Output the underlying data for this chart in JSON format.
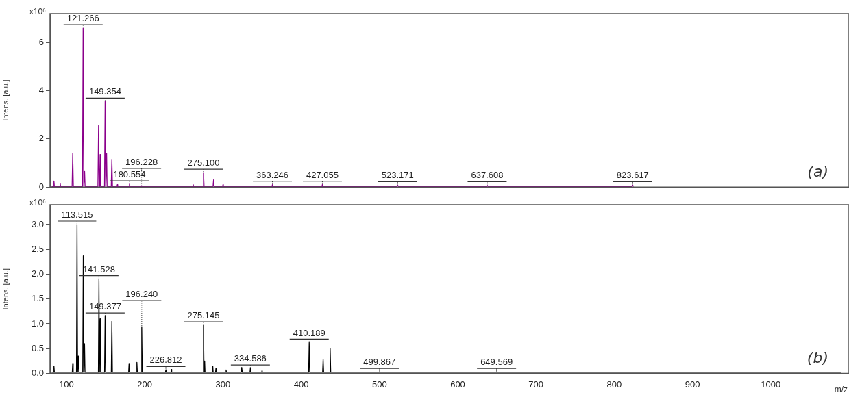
{
  "chart_data": [
    {
      "type": "line",
      "ylabel": "Intens. [a.u.]",
      "xlim": [
        79,
        1100
      ],
      "xticks": [
        100,
        200,
        300,
        400,
        500,
        600,
        700,
        800,
        900,
        1000
      ],
      "ylim": [
        0,
        7.2
      ],
      "yticks": [
        0,
        2,
        4,
        6
      ],
      "tick_labels": "y",
      "marker": "none",
      "series": [
        {
          "color": "#8b008b",
          "x": [
            81,
            83.4,
            84,
            84.6,
            91.4,
            92,
            92.6,
            107.2,
            108,
            108.8,
            120.5,
            121.3,
            122.1,
            122.6,
            123.2,
            123.8,
            140.2,
            141,
            141.8,
            142.4,
            143,
            143.6,
            148.6,
            149.4,
            150.2,
            150.7,
            151.3,
            151.9,
            157.2,
            158,
            158.8,
            164.5,
            165,
            165.5,
            180,
            180.5,
            181,
            195.5,
            196,
            196.5,
            261.5,
            262,
            262.5,
            274.3,
            275.1,
            275.9,
            287.3,
            288,
            288.7,
            299.5,
            300,
            300.5,
            362.7,
            363.2,
            363.7,
            426.5,
            427,
            427.5,
            522.2,
            523.2,
            524.2,
            636.6,
            637.6,
            638.6,
            822.6,
            823.6,
            824.6
          ],
          "values": [
            0.02,
            0.02,
            0.25,
            0.02,
            0.02,
            0.15,
            0.02,
            0.02,
            1.4,
            0.02,
            0.02,
            6.6,
            0.02,
            0.02,
            0.65,
            0.02,
            0.02,
            2.55,
            0.02,
            0.02,
            1.35,
            0.02,
            0.02,
            3.55,
            0.02,
            0.02,
            1.4,
            0.02,
            0.02,
            1.15,
            0.02,
            0.02,
            0.1,
            0.02,
            0.02,
            0.12,
            0.02,
            0.02,
            0.06,
            0.02,
            0.02,
            0.1,
            0.02,
            0.02,
            0.6,
            0.02,
            0.02,
            0.3,
            0.02,
            0.02,
            0.1,
            0.02,
            0.02,
            0.1,
            0.02,
            0.02,
            0.1,
            0.02,
            0.02,
            0.08,
            0.02,
            0.02,
            0.08,
            0.02,
            0.02,
            0.08,
            0.02
          ]
        }
      ],
      "annotations": [
        "x10⁶",
        "(a)",
        {
          "text": "121.266",
          "x": 121.3,
          "y": 6.6
        },
        {
          "text": "149.354",
          "x": 149.4,
          "y": 3.55
        },
        {
          "text": "180.554",
          "x": 180.5,
          "y": 0.12
        },
        {
          "text": "196.228",
          "x": 196,
          "y": 0.06
        },
        {
          "text": "275.100",
          "x": 275.1,
          "y": 0.6
        },
        {
          "text": "363.246",
          "x": 363.2,
          "y": 0.1
        },
        {
          "text": "427.055",
          "x": 427,
          "y": 0.1
        },
        {
          "text": "523.171",
          "x": 523.2,
          "y": 0.08
        },
        {
          "text": "637.608",
          "x": 637.6,
          "y": 0.08
        },
        {
          "text": "823.617",
          "x": 823.6,
          "y": 0.08
        }
      ]
    },
    {
      "type": "line",
      "ylabel": "Intens. [a.u.]",
      "xlabel": "m/z",
      "xlim": [
        79,
        1100
      ],
      "xticks": [
        100,
        200,
        300,
        400,
        500,
        600,
        700,
        800,
        900,
        1000
      ],
      "ylim": [
        0,
        3.4
      ],
      "yticks": [
        {
          "value": 0,
          "label": "0.0"
        },
        0.5,
        {
          "value": 1,
          "label": "1.0"
        },
        1.5,
        {
          "value": 2,
          "label": "2.0"
        },
        2.5,
        {
          "value": 3,
          "label": "3.0"
        }
      ],
      "marker": "none",
      "series": [
        {
          "color": "#000000",
          "x": [
            81,
            83.4,
            84,
            84.6,
            107.4,
            108,
            108.6,
            112.8,
            113.5,
            114.2,
            114.5,
            115.1,
            115.7,
            120.8,
            121.5,
            122.2,
            122.5,
            123.1,
            123.7,
            140.8,
            141.5,
            142.2,
            142.4,
            143,
            143.6,
            148.7,
            149.4,
            150.1,
            157.3,
            158,
            158.7,
            179.4,
            180,
            180.6,
            189.4,
            190,
            190.6,
            195.5,
            196.2,
            196.9,
            226.5,
            227,
            227.5,
            233.5,
            234,
            234.5,
            274.4,
            275.1,
            275.8,
            276.1,
            276.6,
            277.1,
            286.5,
            287,
            287.5,
            290.5,
            291,
            291.5,
            303.5,
            304,
            304.5,
            323.3,
            324,
            324.7,
            334.5,
            335,
            335.5,
            349.5,
            350,
            350.5,
            409.5,
            410.2,
            410.9,
            427.3,
            428,
            428.7,
            436.3,
            437,
            437.7,
            499.5,
            500,
            500.5,
            649,
            649.6,
            650.2,
            1090
          ],
          "values": [
            0.02,
            0.02,
            0.15,
            0.02,
            0.02,
            0.2,
            0.02,
            0.02,
            3.0,
            0.02,
            0.02,
            0.35,
            0.02,
            0.02,
            2.37,
            0.02,
            0.02,
            0.6,
            0.02,
            0.02,
            1.9,
            0.02,
            0.02,
            1.1,
            0.02,
            0.02,
            1.15,
            0.02,
            0.02,
            1.05,
            0.02,
            0.02,
            0.2,
            0.02,
            0.02,
            0.22,
            0.02,
            0.02,
            0.93,
            0.02,
            0.02,
            0.07,
            0.02,
            0.02,
            0.08,
            0.02,
            0.02,
            0.97,
            0.02,
            0.02,
            0.25,
            0.02,
            0.02,
            0.15,
            0.02,
            0.02,
            0.1,
            0.02,
            0.02,
            0.07,
            0.02,
            0.02,
            0.12,
            0.02,
            0.02,
            0.1,
            0.02,
            0.02,
            0.06,
            0.02,
            0.02,
            0.62,
            0.02,
            0.02,
            0.28,
            0.02,
            0.02,
            0.5,
            0.02,
            0.02,
            0.03,
            0.02,
            0.02,
            0.03,
            0.02,
            0.02
          ]
        }
      ],
      "annotations": [
        "x10⁶",
        "(b)",
        {
          "text": "113.515",
          "x": 113.5,
          "y": 3.0
        },
        {
          "text": "141.528",
          "x": 141.5,
          "y": 1.9
        },
        {
          "text": "149.377",
          "x": 149.4,
          "y": 1.15
        },
        {
          "text": "196.240",
          "x": 196.2,
          "y": 0.93
        },
        {
          "text": "226.812",
          "x": 227,
          "y": 0.07
        },
        {
          "text": "275.145",
          "x": 275.1,
          "y": 0.97
        },
        {
          "text": "334.586",
          "x": 335,
          "y": 0.1
        },
        {
          "text": "410.189",
          "x": 410.2,
          "y": 0.62
        },
        {
          "text": "499.867",
          "x": 500,
          "y": 0.03
        },
        {
          "text": "649.569",
          "x": 649.6,
          "y": 0.03
        }
      ]
    }
  ]
}
